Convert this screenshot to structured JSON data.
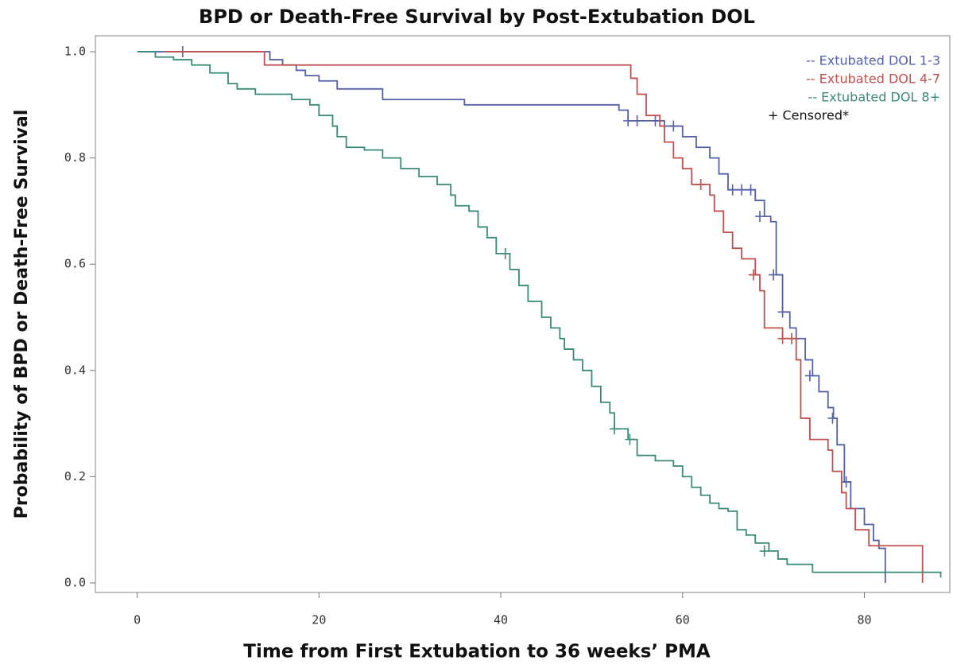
{
  "chart_data": {
    "type": "step",
    "title": "BPD or Death-Free Survival by Post-Extubation DOL",
    "xlabel": "Time from First Extubation to 36 weeks’ PMA",
    "ylabel": "Probability of BPD or Death-Free Survival",
    "xlim": [
      -4.6,
      89.4
    ],
    "ylim": [
      -0.018,
      1.03
    ],
    "xticks": [
      0,
      20,
      40,
      60,
      80
    ],
    "yticks": [
      {
        "value": 0,
        "label": "0.0"
      },
      0.2,
      0.4,
      0.6,
      0.8,
      {
        "value": 1,
        "label": "1.0"
      }
    ],
    "legend": "upper right",
    "censored_label": "+ Censored*",
    "series": [
      {
        "name": "-- Extubated DOL 1-3",
        "color": "#5460a8",
        "x": [
          0,
          14.6,
          16,
          17.5,
          18.5,
          20,
          22,
          27,
          36,
          53,
          54,
          58,
          60,
          61.5,
          63,
          64,
          65,
          68,
          69,
          69.7,
          70.3,
          71,
          71.8,
          72.5,
          73.5,
          74.3,
          75,
          76,
          76.6,
          77,
          77.8,
          78.5,
          80,
          81,
          81.6,
          82.3
        ],
        "values": [
          1,
          0.985,
          0.975,
          0.965,
          0.955,
          0.945,
          0.93,
          0.91,
          0.9,
          0.89,
          0.87,
          0.86,
          0.84,
          0.82,
          0.8,
          0.77,
          0.74,
          0.72,
          0.69,
          0.68,
          0.58,
          0.51,
          0.48,
          0.46,
          0.42,
          0.39,
          0.36,
          0.33,
          0.31,
          0.26,
          0.19,
          0.14,
          0.11,
          0.08,
          0.065,
          0
        ],
        "censored": {
          "x": [
            5,
            54,
            55,
            57,
            59,
            65.5,
            66.5,
            67.5,
            68.5,
            70,
            71,
            74,
            76.5,
            78
          ],
          "y": [
            1,
            0.87,
            0.87,
            0.87,
            0.86,
            0.74,
            0.74,
            0.74,
            0.69,
            0.58,
            0.51,
            0.39,
            0.31,
            0.19
          ]
        }
      },
      {
        "name": "-- Extubated DOL 4-7",
        "color": "#c0504d",
        "x": [
          3,
          14,
          54.3,
          55,
          56,
          57.5,
          58,
          59,
          60,
          61,
          63,
          63.5,
          64.5,
          65.5,
          66.5,
          68,
          68.5,
          69,
          71,
          72.5,
          73,
          74,
          76,
          76.5,
          77.5,
          78,
          79,
          80.5,
          86.4
        ],
        "values": [
          1,
          0.975,
          0.95,
          0.92,
          0.88,
          0.86,
          0.83,
          0.8,
          0.78,
          0.75,
          0.73,
          0.7,
          0.66,
          0.63,
          0.61,
          0.58,
          0.55,
          0.48,
          0.46,
          0.42,
          0.31,
          0.27,
          0.25,
          0.21,
          0.17,
          0.14,
          0.1,
          0.07,
          0
        ],
        "censored": {
          "x": [
            62,
            67.8,
            71,
            72
          ],
          "y": [
            0.75,
            0.58,
            0.46,
            0.46
          ]
        }
      },
      {
        "name": "-- Extubated DOL 8+",
        "color": "#3a8a78",
        "x": [
          0,
          2,
          4,
          6,
          8,
          10,
          11,
          13,
          17,
          19,
          20,
          21.5,
          22,
          23,
          25,
          27,
          29,
          31,
          33,
          34.5,
          35,
          36.5,
          37.5,
          38.5,
          39.5,
          41,
          42,
          43,
          44.5,
          45.5,
          46.5,
          47,
          48,
          49,
          50,
          51,
          52,
          52.5,
          54,
          55,
          57,
          59,
          60,
          61,
          62,
          63,
          64,
          65,
          66,
          67,
          68,
          69.5,
          70.5,
          71.5,
          74.3,
          88.4
        ],
        "values": [
          1,
          0.99,
          0.985,
          0.975,
          0.96,
          0.94,
          0.93,
          0.92,
          0.91,
          0.9,
          0.88,
          0.86,
          0.84,
          0.82,
          0.815,
          0.8,
          0.78,
          0.765,
          0.75,
          0.73,
          0.71,
          0.7,
          0.67,
          0.65,
          0.62,
          0.59,
          0.56,
          0.53,
          0.5,
          0.48,
          0.46,
          0.44,
          0.42,
          0.4,
          0.37,
          0.34,
          0.32,
          0.29,
          0.27,
          0.24,
          0.23,
          0.22,
          0.2,
          0.18,
          0.165,
          0.15,
          0.14,
          0.135,
          0.1,
          0.09,
          0.075,
          0.06,
          0.045,
          0.035,
          0.02,
          0.01
        ],
        "censored": {
          "x": [
            40.5,
            52.5,
            54.2,
            69
          ],
          "y": [
            0.62,
            0.29,
            0.27,
            0.06
          ]
        }
      }
    ]
  }
}
